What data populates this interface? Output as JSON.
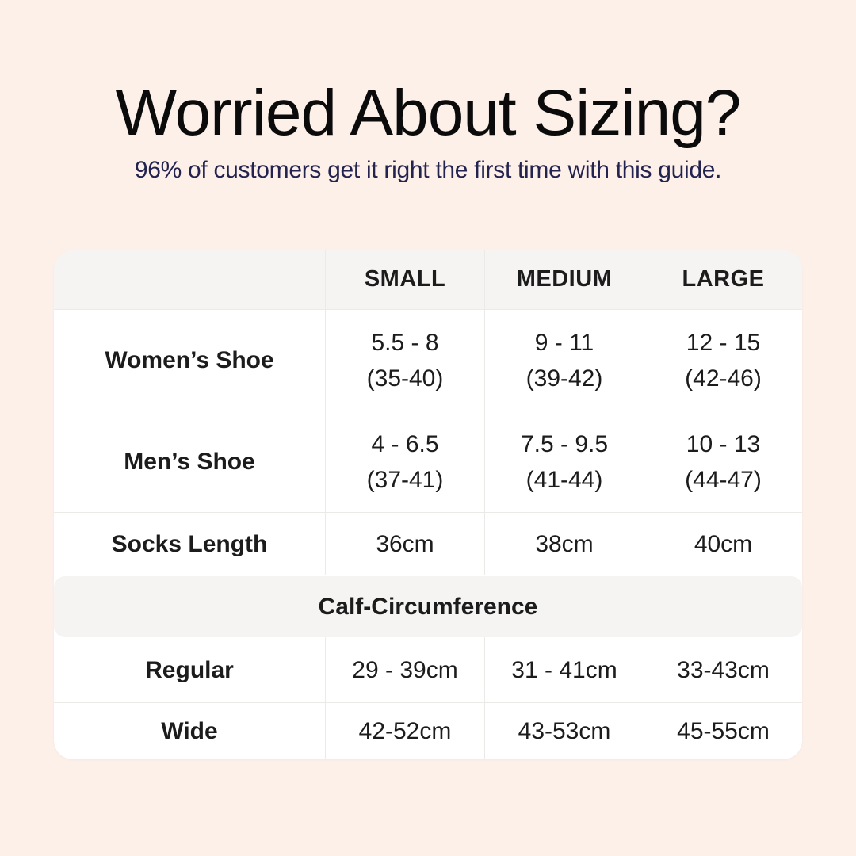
{
  "header": {
    "title": "Worried About Sizing?",
    "subtitle": "96% of customers get it right the first time with this guide."
  },
  "colors": {
    "page_background": "#fdf0e9",
    "table_background": "#ffffff",
    "header_band_background": "#f5f4f2",
    "divider": "#eceae7",
    "title_text": "#0b0b0b",
    "subtitle_text": "#232350",
    "table_text": "#1c1c1c"
  },
  "chart_data": {
    "type": "table",
    "title": "Worried About Sizing?",
    "subtitle": "96% of customers get it right the first time with this guide.",
    "column_headers": [
      "",
      "SMALL",
      "MEDIUM",
      "LARGE"
    ],
    "rows": [
      {
        "label": "Women’s Shoe",
        "cells": [
          {
            "primary": "5.5 - 8",
            "secondary": "(35-40)"
          },
          {
            "primary": "9 - 11",
            "secondary": "(39-42)"
          },
          {
            "primary": "12 - 15",
            "secondary": "(42-46)"
          }
        ]
      },
      {
        "label": "Men’s Shoe",
        "cells": [
          {
            "primary": "4 - 6.5",
            "secondary": "(37-41)"
          },
          {
            "primary": "7.5 - 9.5",
            "secondary": "(41-44)"
          },
          {
            "primary": "10 - 13",
            "secondary": "(44-47)"
          }
        ]
      },
      {
        "label": "Socks Length",
        "cells": [
          {
            "primary": "36cm"
          },
          {
            "primary": "38cm"
          },
          {
            "primary": "40cm"
          }
        ]
      }
    ],
    "section_header": "Calf-Circumference",
    "section_rows": [
      {
        "label": "Regular",
        "cells": [
          {
            "primary": "29 - 39cm"
          },
          {
            "primary": "31 - 41cm"
          },
          {
            "primary": "33-43cm"
          }
        ]
      },
      {
        "label": "Wide",
        "cells": [
          {
            "primary": "42-52cm"
          },
          {
            "primary": "43-53cm"
          },
          {
            "primary": "45-55cm"
          }
        ]
      }
    ]
  }
}
